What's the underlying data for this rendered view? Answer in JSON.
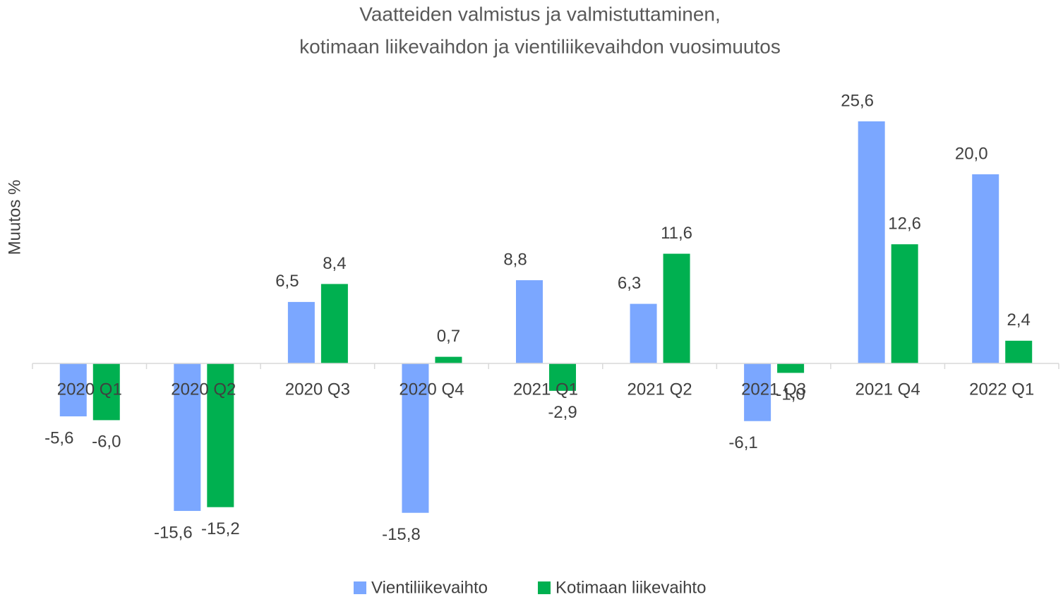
{
  "chart_data": {
    "type": "bar",
    "title": [
      "Vaatteiden valmistus ja valmistuttaminen,",
      "kotimaan liikevaihdon ja vientiliikevaihdon vuosimuutos"
    ],
    "ylabel": "Muutos %",
    "categories": [
      "2020 Q1",
      "2020 Q2",
      "2020 Q3",
      "2020 Q4",
      "2021 Q1",
      "2021 Q2",
      "2021 Q3",
      "2021 Q4",
      "2022 Q1"
    ],
    "series": [
      {
        "name": "Vientiliikevaihto",
        "color": "#7ba7ff",
        "values": [
          -5.6,
          -15.6,
          6.5,
          -15.8,
          8.8,
          6.3,
          -6.1,
          25.6,
          20.0
        ],
        "value_labels": [
          "-5,6",
          "-15,6",
          "6,5",
          "-15,8",
          "8,8",
          "6,3",
          "-6,1",
          "25,6",
          "20,0"
        ]
      },
      {
        "name": "Kotimaan liikevaihto",
        "color": "#00b050",
        "values": [
          -6.0,
          -15.2,
          8.4,
          0.7,
          -2.9,
          11.6,
          -1.0,
          12.6,
          2.4
        ],
        "value_labels": [
          "-6,0",
          "-15,2",
          "8,4",
          "0,7",
          "-2,9",
          "11,6",
          "-1,0",
          "12,6",
          "2,4"
        ]
      }
    ],
    "ylim": [
      -20,
      30
    ],
    "legend": "bottom"
  }
}
